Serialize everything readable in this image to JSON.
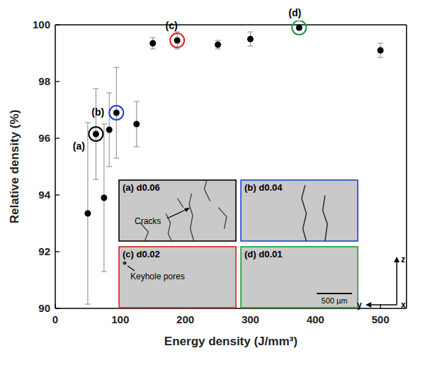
{
  "chart_data": {
    "type": "scatter",
    "x_label": "Energy density (J/mm³)",
    "y_label": "Relative density (%)",
    "xlim": [
      0,
      540
    ],
    "ylim": [
      90,
      100
    ],
    "xticks": [
      0,
      100,
      200,
      300,
      400,
      500
    ],
    "yticks": [
      90,
      92,
      94,
      96,
      98,
      100
    ],
    "grid": false,
    "series": [
      {
        "color": "#000000",
        "marker": "circle",
        "x": [
          50,
          62.5,
          75,
          83,
          94,
          125,
          150,
          187.5,
          250,
          300,
          375,
          500
        ],
        "values": [
          93.35,
          96.15,
          93.9,
          96.3,
          96.9,
          96.5,
          99.35,
          99.45,
          99.3,
          99.5,
          99.9,
          99.1
        ],
        "errors": [
          3.2,
          1.6,
          2.6,
          1.3,
          1.6,
          0.8,
          0.2,
          0.3,
          0.15,
          0.25,
          0.05,
          0.25
        ]
      }
    ],
    "annotations": [
      {
        "label": "(a)",
        "x": 62.5,
        "y": 96.15,
        "color": "#000000"
      },
      {
        "label": "(b)",
        "x": 94,
        "y": 96.9,
        "color": "#1f3fd6"
      },
      {
        "label": "(c)",
        "x": 187.5,
        "y": 99.45,
        "color": "#e0201b"
      },
      {
        "label": "(d)",
        "x": 375,
        "y": 99.9,
        "color": "#1a9a3a"
      }
    ],
    "insets": [
      {
        "label": "(a) d0.06",
        "color": "#000000",
        "callout": "Cracks"
      },
      {
        "label": "(b) d0.04",
        "color": "#1f3fd6"
      },
      {
        "label": "(c) d0.02",
        "color": "#e0201b",
        "callout": "Keyhole pores"
      },
      {
        "label": "(d) d0.01",
        "color": "#1a9a3a",
        "scale_bar": "500 µm"
      }
    ],
    "axes_triad": [
      "z",
      "y",
      "x"
    ]
  }
}
